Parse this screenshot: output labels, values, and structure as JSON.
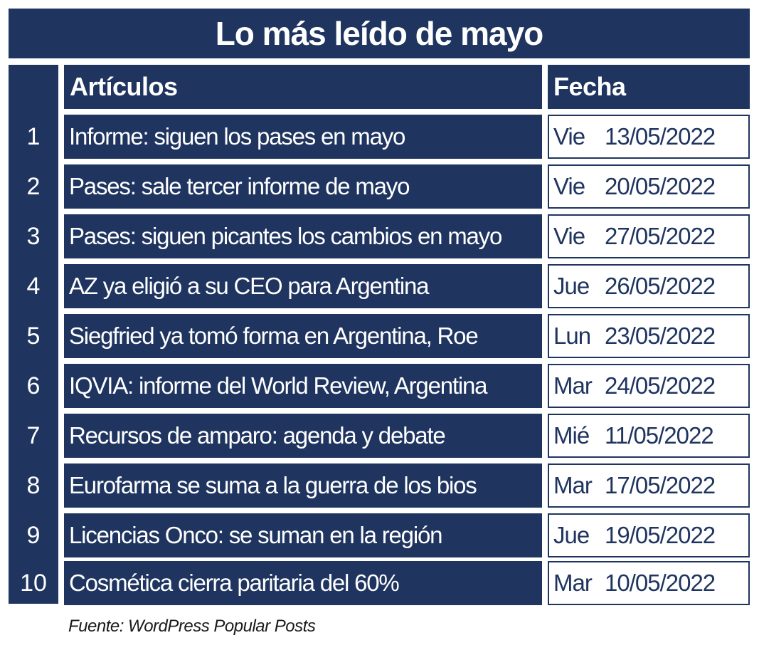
{
  "title": "Lo más leído de mayo",
  "headers": {
    "articles": "Artículos",
    "date": "Fecha"
  },
  "rows": [
    {
      "num": "1",
      "title": "Informe: siguen los pases en mayo",
      "dow": "Vie",
      "date": "13/05/2022"
    },
    {
      "num": "2",
      "title": "Pases: sale tercer informe de mayo",
      "dow": "Vie",
      "date": "20/05/2022"
    },
    {
      "num": "3",
      "title": "Pases: siguen picantes los cambios en mayo",
      "dow": "Vie",
      "date": "27/05/2022"
    },
    {
      "num": "4",
      "title": "AZ ya eligió a su CEO para Argentina",
      "dow": "Jue",
      "date": "26/05/2022"
    },
    {
      "num": "5",
      "title": "Siegfried ya tomó forma en Argentina, Roe",
      "dow": "Lun",
      "date": "23/05/2022"
    },
    {
      "num": "6",
      "title": "IQVIA: informe del World Review, Argentina",
      "dow": "Mar",
      "date": "24/05/2022"
    },
    {
      "num": "7",
      "title": "Recursos de amparo: agenda y debate",
      "dow": "Mié",
      "date": "11/05/2022"
    },
    {
      "num": "8",
      "title": "Eurofarma se suma a la guerra de los bios",
      "dow": "Mar",
      "date": "17/05/2022"
    },
    {
      "num": "9",
      "title": "Licencias Onco: se suman en la región",
      "dow": "Jue",
      "date": "19/05/2022"
    },
    {
      "num": "10",
      "title": "Cosmética cierra paritaria del 60%",
      "dow": "Mar",
      "date": "10/05/2022"
    }
  ],
  "source": "Fuente: WordPress Popular Posts",
  "colors": {
    "navy": "#1f3560",
    "white": "#ffffff"
  }
}
